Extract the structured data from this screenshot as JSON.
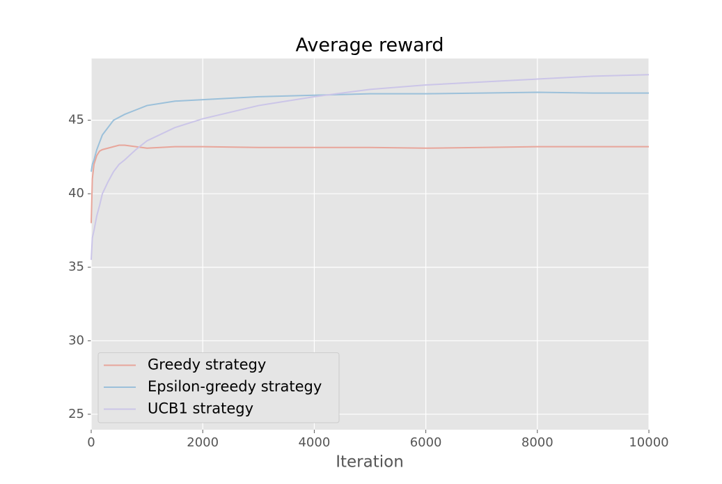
{
  "chart_data": {
    "type": "line",
    "title": "Average reward",
    "xlabel": "Iteration",
    "x": [
      0,
      20,
      50,
      100,
      150,
      200,
      300,
      400,
      500,
      600,
      800,
      1000,
      1500,
      2000,
      3000,
      4000,
      5000,
      6000,
      7000,
      8000,
      9000,
      10000
    ],
    "series": [
      {
        "name": "Greedy strategy",
        "color": "#e8a59a",
        "values": [
          38,
          41,
          42,
          42.6,
          42.9,
          43.0,
          43.1,
          43.2,
          43.3,
          43.3,
          43.2,
          43.1,
          43.2,
          43.2,
          43.15,
          43.15,
          43.15,
          43.1,
          43.15,
          43.2,
          43.2,
          43.2
        ]
      },
      {
        "name": "Epsilon-greedy strategy",
        "color": "#9bc0da",
        "values": [
          41.5,
          42,
          42.3,
          43,
          43.5,
          44,
          44.5,
          45,
          45.2,
          45.4,
          45.7,
          46.0,
          46.3,
          46.4,
          46.6,
          46.7,
          46.8,
          46.8,
          46.85,
          46.9,
          46.85,
          46.85
        ]
      },
      {
        "name": "UCB1 strategy",
        "color": "#cbc5e8",
        "values": [
          35.5,
          37,
          37.5,
          38.5,
          39.2,
          40,
          40.8,
          41.5,
          42,
          42.3,
          43.0,
          43.6,
          44.5,
          45.1,
          46.0,
          46.6,
          47.1,
          47.4,
          47.6,
          47.8,
          48.0,
          48.1
        ]
      }
    ],
    "xlim": [
      0,
      10000
    ],
    "xticks": [
      0,
      2000,
      4000,
      6000,
      8000,
      10000
    ],
    "ylim": [
      23.95,
      49.2
    ],
    "yticks": [
      25,
      30,
      35,
      40,
      45
    ],
    "grid": true,
    "legend": "lower left"
  }
}
